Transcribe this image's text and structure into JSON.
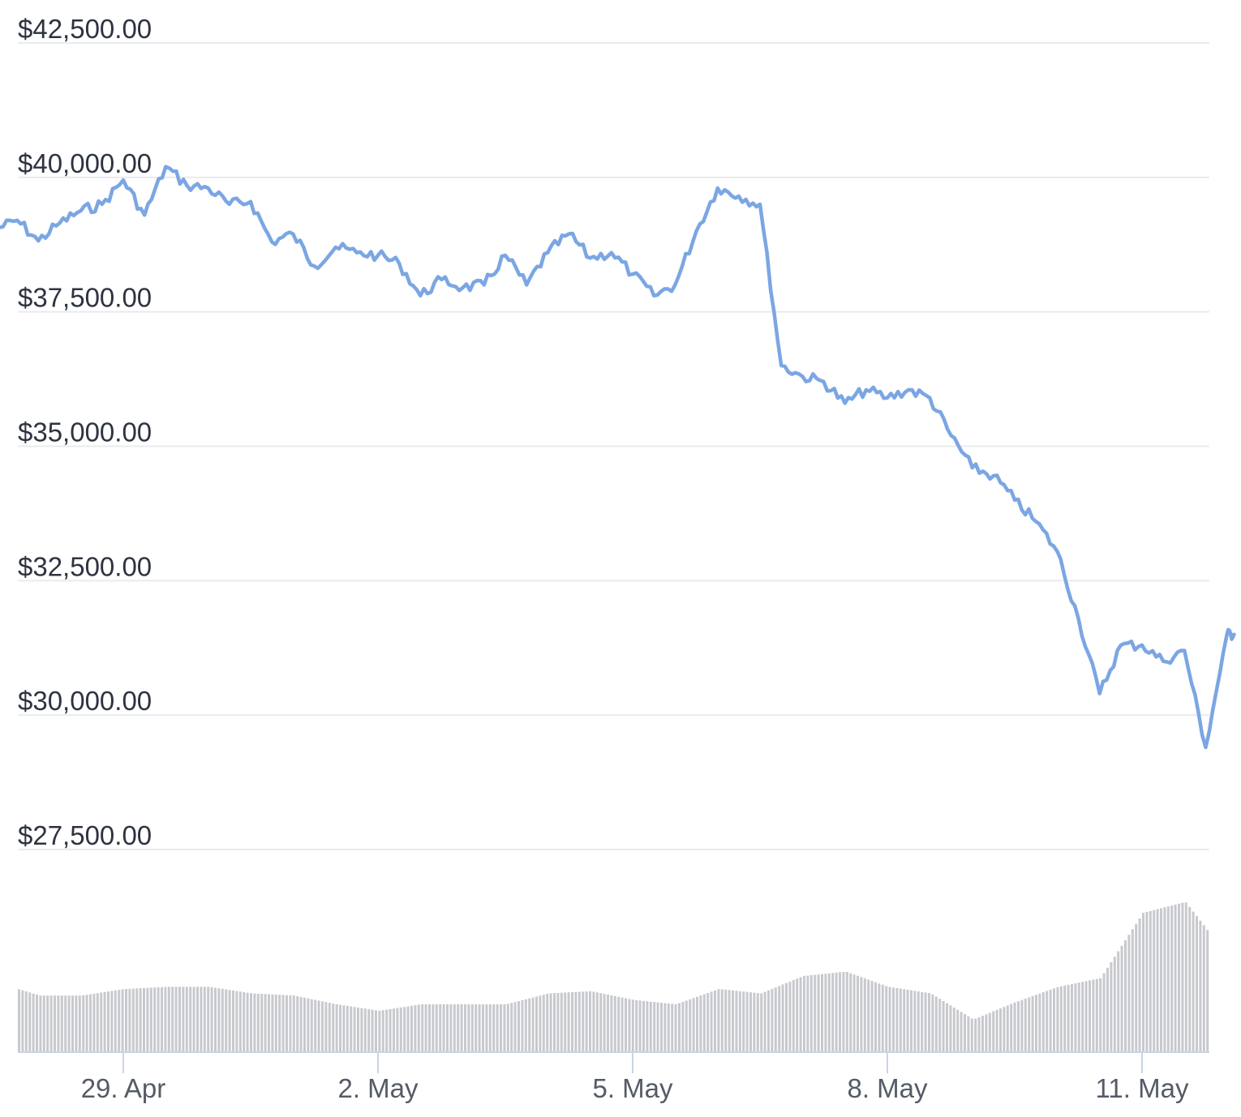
{
  "chart_data": {
    "type": "line",
    "title": "",
    "xlabel": "",
    "ylabel": "",
    "ylim": [
      27500,
      42500
    ],
    "x_range_days": [
      27.55,
      12.2
    ],
    "y_ticks": [
      "$42,500.00",
      "$40,000.00",
      "$37,500.00",
      "$35,000.00",
      "$32,500.00",
      "$30,000.00",
      "$27,500.00"
    ],
    "y_tick_values": [
      42500,
      40000,
      37500,
      35000,
      32500,
      30000,
      27500
    ],
    "x_ticks": [
      "29. Apr",
      "2. May",
      "5. May",
      "8. May",
      "11. May"
    ],
    "x_tick_dates": [
      "2022-04-29",
      "2022-05-02",
      "2022-05-05",
      "2022-05-08",
      "2022-05-11"
    ],
    "grid": true,
    "legend": "none",
    "colors": {
      "line": "#7ba6e3",
      "volume": "#c7c9ce",
      "grid": "#e9ebee",
      "axis": "#c9d4e6"
    },
    "series": [
      {
        "values": [
          [
            "2022-04-27T12:00",
            39040
          ],
          [
            "2022-04-27T18:00",
            39200
          ],
          [
            "2022-04-28T00:00",
            38820
          ],
          [
            "2022-04-28T06:00",
            39150
          ],
          [
            "2022-04-28T12:00",
            39380
          ],
          [
            "2022-04-28T18:00",
            39500
          ],
          [
            "2022-04-29T00:00",
            39950
          ],
          [
            "2022-04-29T06:00",
            39300
          ],
          [
            "2022-04-29T12:00",
            40200
          ],
          [
            "2022-04-29T18:00",
            39850
          ],
          [
            "2022-04-30T00:00",
            39800
          ],
          [
            "2022-04-30T06:00",
            39500
          ],
          [
            "2022-04-30T12:00",
            39550
          ],
          [
            "2022-04-30T18:00",
            38800
          ],
          [
            "2022-05-01T00:00",
            38950
          ],
          [
            "2022-05-01T06:00",
            38350
          ],
          [
            "2022-05-01T12:00",
            38700
          ],
          [
            "2022-05-01T18:00",
            38600
          ],
          [
            "2022-05-02T00:00",
            38550
          ],
          [
            "2022-05-02T06:00",
            38400
          ],
          [
            "2022-05-02T12:00",
            37800
          ],
          [
            "2022-05-02T18:00",
            38100
          ],
          [
            "2022-05-03T00:00",
            37950
          ],
          [
            "2022-05-03T06:00",
            38000
          ],
          [
            "2022-05-03T12:00",
            38550
          ],
          [
            "2022-05-03T18:00",
            38000
          ],
          [
            "2022-05-04T00:00",
            38600
          ],
          [
            "2022-05-04T06:00",
            38950
          ],
          [
            "2022-05-04T12:00",
            38500
          ],
          [
            "2022-05-04T18:00",
            38600
          ],
          [
            "2022-05-05T00:00",
            38200
          ],
          [
            "2022-05-05T06:00",
            37800
          ],
          [
            "2022-05-05T12:00",
            38000
          ],
          [
            "2022-05-05T18:00",
            39000
          ],
          [
            "2022-05-06T00:00",
            39800
          ],
          [
            "2022-05-06T06:00",
            39650
          ],
          [
            "2022-05-06T12:00",
            39500
          ],
          [
            "2022-05-06T18:00",
            36500
          ],
          [
            "2022-05-07T00:00",
            36300
          ],
          [
            "2022-05-07T06:00",
            36200
          ],
          [
            "2022-05-07T12:00",
            35800
          ],
          [
            "2022-05-07T18:00",
            36050
          ],
          [
            "2022-05-08T00:00",
            35900
          ],
          [
            "2022-05-08T06:00",
            36050
          ],
          [
            "2022-05-08T12:00",
            35900
          ],
          [
            "2022-05-08T18:00",
            35200
          ],
          [
            "2022-05-09T00:00",
            34600
          ],
          [
            "2022-05-09T06:00",
            34450
          ],
          [
            "2022-05-09T12:00",
            34000
          ],
          [
            "2022-05-09T18:00",
            33600
          ],
          [
            "2022-05-10T00:00",
            33050
          ],
          [
            "2022-05-10T06:00",
            31800
          ],
          [
            "2022-05-10T12:00",
            30400
          ],
          [
            "2022-05-10T18:00",
            31300
          ],
          [
            "2022-05-11T00:00",
            31300
          ],
          [
            "2022-05-11T06:00",
            31000
          ],
          [
            "2022-05-11T12:00",
            31200
          ],
          [
            "2022-05-11T18:00",
            29400
          ],
          [
            "2022-05-12T00:00",
            31500
          ],
          [
            "2022-05-12T02:00",
            31500
          ]
        ]
      },
      {
        "values": [
          [
            "2022-04-27T12:00",
            16
          ],
          [
            "2022-04-28T00:00",
            13
          ],
          [
            "2022-04-28T12:00",
            13
          ],
          [
            "2022-04-29T00:00",
            14.5
          ],
          [
            "2022-04-29T12:00",
            15
          ],
          [
            "2022-04-30T00:00",
            15
          ],
          [
            "2022-04-30T12:00",
            13.5
          ],
          [
            "2022-05-01T00:00",
            13
          ],
          [
            "2022-05-01T12:00",
            11
          ],
          [
            "2022-05-02T00:00",
            9.5
          ],
          [
            "2022-05-02T12:00",
            11
          ],
          [
            "2022-05-03T00:00",
            11
          ],
          [
            "2022-05-03T12:00",
            11
          ],
          [
            "2022-05-04T00:00",
            13.5
          ],
          [
            "2022-05-04T12:00",
            14
          ],
          [
            "2022-05-05T00:00",
            12
          ],
          [
            "2022-05-05T12:00",
            11
          ],
          [
            "2022-05-06T00:00",
            14.5
          ],
          [
            "2022-05-06T12:00",
            13.5
          ],
          [
            "2022-05-07T00:00",
            17.5
          ],
          [
            "2022-05-07T12:00",
            18.5
          ],
          [
            "2022-05-08T00:00",
            15
          ],
          [
            "2022-05-08T12:00",
            13.5
          ],
          [
            "2022-05-09T00:00",
            7.5
          ],
          [
            "2022-05-09T12:00",
            11.5
          ],
          [
            "2022-05-10T00:00",
            15
          ],
          [
            "2022-05-10T12:00",
            17
          ],
          [
            "2022-05-11T00:00",
            32
          ],
          [
            "2022-05-11T12:00",
            34.5
          ],
          [
            "2022-05-12T00:00",
            22
          ],
          [
            "2022-05-12T02:00",
            27
          ]
        ]
      }
    ]
  }
}
